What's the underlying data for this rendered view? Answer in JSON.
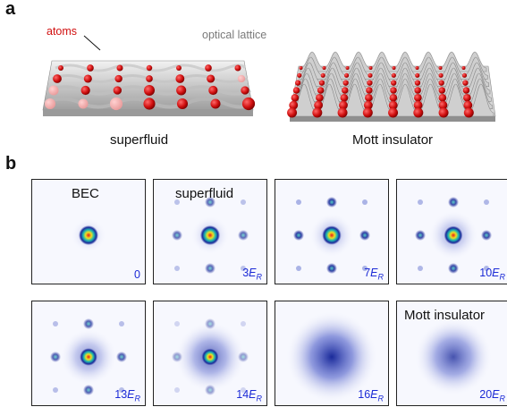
{
  "panel_a": {
    "letter": "a",
    "atoms_label": "atoms",
    "lattice_label": "optical lattice",
    "left_caption": "superfluid",
    "right_caption": "Mott insulator"
  },
  "panel_b": {
    "letter": "b",
    "tiles": [
      {
        "title": "BEC",
        "label_num": "0",
        "label_unit": "",
        "label_sub": ""
      },
      {
        "title": "superfluid",
        "label_num": "3",
        "label_unit": "E",
        "label_sub": "R"
      },
      {
        "title": "",
        "label_num": "7",
        "label_unit": "E",
        "label_sub": "R"
      },
      {
        "title": "",
        "label_num": "10",
        "label_unit": "E",
        "label_sub": "R"
      },
      {
        "title": "",
        "label_num": "13",
        "label_unit": "E",
        "label_sub": "R"
      },
      {
        "title": "",
        "label_num": "14",
        "label_unit": "E",
        "label_sub": "R"
      },
      {
        "title": "",
        "label_num": "16",
        "label_unit": "E",
        "label_sub": "R"
      },
      {
        "title": "Mott insulator",
        "label_num": "20",
        "label_unit": "E",
        "label_sub": "R"
      }
    ]
  },
  "colors": {
    "atom_red": "#d11010",
    "lattice_gray": "#bdbdbd",
    "label_blue": "#1c2bd6",
    "halo_blue": "#2a3cb0"
  }
}
